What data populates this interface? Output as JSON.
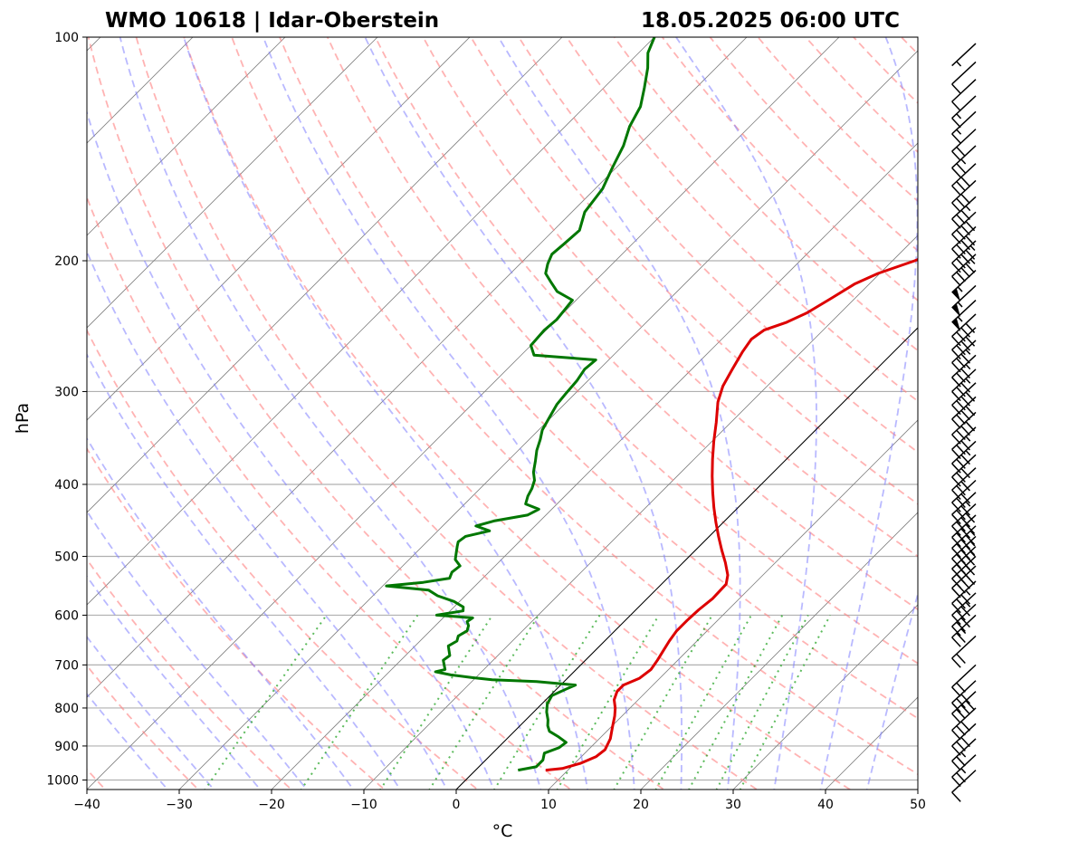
{
  "chart_data": {
    "type": "line",
    "title_left": "WMO 10618 | Idar-Oberstein",
    "title_right": "18.05.2025 06:00 UTC",
    "xlabel": "°C",
    "ylabel": "hPa",
    "xlim": [
      -40,
      50
    ],
    "ylim": [
      1030,
      100
    ],
    "y_scale": "log",
    "skew": "skew-T (isotherms slanted 45°)",
    "grid": true,
    "x_ticks": [
      -40,
      -30,
      -20,
      -10,
      0,
      10,
      20,
      30,
      40,
      50
    ],
    "x_tick_labels": [
      "−40",
      "−30",
      "−20",
      "−10",
      "0",
      "10",
      "20",
      "30",
      "40",
      "50"
    ],
    "y_ticks": [
      100,
      200,
      300,
      400,
      500,
      600,
      700,
      800,
      900,
      1000
    ],
    "y_tick_labels": [
      "100",
      "200",
      "300",
      "400",
      "500",
      "600",
      "700",
      "800",
      "900",
      "1000"
    ],
    "reference_lines": {
      "dry_adiabats": {
        "color": "#ff8080",
        "style": "dashed"
      },
      "moist_adiabats": {
        "color": "#8080ff",
        "style": "dashed"
      },
      "mixing_ratio_lines": {
        "color": "#33aa33",
        "style": "dotted",
        "top_pressure": 600
      },
      "isotherms": {
        "color": "#808080",
        "style": "solid"
      },
      "zero_isotherm_highlight": {
        "color": "#000000",
        "style": "solid"
      }
    },
    "series": [
      {
        "role": "temperature",
        "color": "#dd0000",
        "points": [
          [
            970,
            7.6
          ],
          [
            965,
            9.2
          ],
          [
            950,
            10.6
          ],
          [
            930,
            11.6
          ],
          [
            910,
            11.8
          ],
          [
            880,
            11.2
          ],
          [
            850,
            10.2
          ],
          [
            820,
            9.2
          ],
          [
            800,
            8.4
          ],
          [
            780,
            7.4
          ],
          [
            760,
            6.8
          ],
          [
            745,
            6.8
          ],
          [
            730,
            7.8
          ],
          [
            710,
            8.1
          ],
          [
            690,
            7.8
          ],
          [
            670,
            7.4
          ],
          [
            650,
            7.0
          ],
          [
            630,
            6.7
          ],
          [
            610,
            6.7
          ],
          [
            590,
            6.8
          ],
          [
            570,
            7.1
          ],
          [
            545,
            7.0
          ],
          [
            530,
            6.2
          ],
          [
            510,
            4.6
          ],
          [
            490,
            2.8
          ],
          [
            470,
            1.0
          ],
          [
            450,
            -0.8
          ],
          [
            430,
            -2.6
          ],
          [
            410,
            -4.4
          ],
          [
            390,
            -6.2
          ],
          [
            370,
            -8.0
          ],
          [
            350,
            -9.8
          ],
          [
            330,
            -11.6
          ],
          [
            310,
            -13.6
          ],
          [
            295,
            -14.8
          ],
          [
            280,
            -15.6
          ],
          [
            265,
            -16.4
          ],
          [
            255,
            -16.8
          ],
          [
            248,
            -16.4
          ],
          [
            242,
            -14.8
          ],
          [
            235,
            -13.6
          ],
          [
            225,
            -12.6
          ],
          [
            215,
            -11.6
          ],
          [
            208,
            -10.2
          ],
          [
            200,
            -7.6
          ],
          [
            192,
            -5.4
          ],
          [
            188,
            -4.8
          ],
          [
            182,
            -4.6
          ],
          [
            178,
            -3.2
          ],
          [
            170,
            -2.2
          ],
          [
            165,
            -1.0
          ],
          [
            160,
            0.0
          ],
          [
            155,
            0.4
          ],
          [
            150,
            0.6
          ],
          [
            145,
            1.2
          ],
          [
            140,
            3.6
          ],
          [
            135,
            4.8
          ],
          [
            128,
            5.2
          ],
          [
            120,
            6.0
          ],
          [
            115,
            6.4
          ],
          [
            110,
            6.2
          ],
          [
            105,
            5.8
          ],
          [
            101,
            5.8
          ]
        ]
      },
      {
        "role": "dewpoint",
        "color": "#007700",
        "points": [
          [
            970,
            4.6
          ],
          [
            960,
            6.2
          ],
          [
            940,
            6.2
          ],
          [
            920,
            5.6
          ],
          [
            905,
            6.6
          ],
          [
            890,
            6.8
          ],
          [
            875,
            5.4
          ],
          [
            860,
            3.8
          ],
          [
            845,
            3.0
          ],
          [
            830,
            2.4
          ],
          [
            810,
            1.4
          ],
          [
            790,
            0.6
          ],
          [
            770,
            0.2
          ],
          [
            755,
            1.0
          ],
          [
            745,
            1.6
          ],
          [
            737,
            -3.0
          ],
          [
            733,
            -8.0
          ],
          [
            728,
            -10.4
          ],
          [
            722,
            -13.0
          ],
          [
            715,
            -15.0
          ],
          [
            710,
            -14.2
          ],
          [
            700,
            -14.8
          ],
          [
            690,
            -15.4
          ],
          [
            680,
            -15.2
          ],
          [
            670,
            -15.8
          ],
          [
            660,
            -16.4
          ],
          [
            650,
            -16.0
          ],
          [
            640,
            -16.4
          ],
          [
            630,
            -16.0
          ],
          [
            620,
            -16.4
          ],
          [
            612,
            -17.0
          ],
          [
            605,
            -16.8
          ],
          [
            600,
            -21.0
          ],
          [
            592,
            -18.6
          ],
          [
            585,
            -19.0
          ],
          [
            575,
            -20.6
          ],
          [
            565,
            -23.0
          ],
          [
            555,
            -24.6
          ],
          [
            548,
            -29.6
          ],
          [
            542,
            -26.0
          ],
          [
            535,
            -23.6
          ],
          [
            525,
            -24.0
          ],
          [
            515,
            -23.8
          ],
          [
            505,
            -25.0
          ],
          [
            495,
            -25.6
          ],
          [
            485,
            -26.2
          ],
          [
            478,
            -26.6
          ],
          [
            470,
            -26.4
          ],
          [
            462,
            -24.4
          ],
          [
            455,
            -26.4
          ],
          [
            448,
            -25.0
          ],
          [
            440,
            -22.0
          ],
          [
            432,
            -21.4
          ],
          [
            425,
            -23.4
          ],
          [
            415,
            -24.0
          ],
          [
            405,
            -24.4
          ],
          [
            395,
            -25.0
          ],
          [
            385,
            -26.0
          ],
          [
            372,
            -27.0
          ],
          [
            360,
            -28.0
          ],
          [
            348,
            -28.8
          ],
          [
            338,
            -29.6
          ],
          [
            325,
            -30.2
          ],
          [
            312,
            -30.8
          ],
          [
            302,
            -31.0
          ],
          [
            290,
            -31.2
          ],
          [
            280,
            -31.6
          ],
          [
            272,
            -31.4
          ],
          [
            268,
            -38.6
          ],
          [
            260,
            -40.0
          ],
          [
            248,
            -40.2
          ],
          [
            240,
            -40.0
          ],
          [
            233,
            -40.2
          ],
          [
            226,
            -40.4
          ],
          [
            220,
            -43.0
          ],
          [
            214,
            -44.6
          ],
          [
            208,
            -46.2
          ],
          [
            202,
            -47.0
          ],
          [
            196,
            -47.6
          ],
          [
            190,
            -47.4
          ],
          [
            182,
            -47.2
          ],
          [
            172,
            -48.6
          ],
          [
            160,
            -49.2
          ],
          [
            150,
            -50.4
          ],
          [
            140,
            -51.6
          ],
          [
            132,
            -53.0
          ],
          [
            124,
            -54.0
          ],
          [
            117,
            -55.6
          ],
          [
            110,
            -57.4
          ],
          [
            105,
            -59.0
          ],
          [
            100,
            -60.0
          ]
        ]
      }
    ],
    "wind_barbs": {
      "color": "#000000",
      "units": "kt",
      "levels": [
        {
          "p": 970,
          "speed": 10
        },
        {
          "p": 925,
          "speed": 25
        },
        {
          "p": 880,
          "speed": 25
        },
        {
          "p": 840,
          "speed": 30
        },
        {
          "p": 800,
          "speed": 30
        },
        {
          "p": 760,
          "speed": 40
        },
        {
          "p": 735,
          "speed": 30
        },
        {
          "p": 700,
          "speed": 20
        },
        {
          "p": 640,
          "speed": 20
        },
        {
          "p": 600,
          "speed": 25
        },
        {
          "p": 580,
          "speed": 30
        },
        {
          "p": 560,
          "speed": 35
        },
        {
          "p": 540,
          "speed": 35
        },
        {
          "p": 515,
          "speed": 40
        },
        {
          "p": 500,
          "speed": 40
        },
        {
          "p": 485,
          "speed": 45
        },
        {
          "p": 470,
          "speed": 45
        },
        {
          "p": 455,
          "speed": 45
        },
        {
          "p": 440,
          "speed": 40
        },
        {
          "p": 425,
          "speed": 40
        },
        {
          "p": 410,
          "speed": 35
        },
        {
          "p": 395,
          "speed": 30
        },
        {
          "p": 380,
          "speed": 30
        },
        {
          "p": 365,
          "speed": 30
        },
        {
          "p": 350,
          "speed": 35
        },
        {
          "p": 335,
          "speed": 35
        },
        {
          "p": 320,
          "speed": 40
        },
        {
          "p": 305,
          "speed": 40
        },
        {
          "p": 292,
          "speed": 40
        },
        {
          "p": 280,
          "speed": 35
        },
        {
          "p": 268,
          "speed": 35
        },
        {
          "p": 256,
          "speed": 35
        },
        {
          "p": 246,
          "speed": 40
        },
        {
          "p": 236,
          "speed": 40
        },
        {
          "p": 226,
          "speed": 55
        },
        {
          "p": 216,
          "speed": 55
        },
        {
          "p": 206,
          "speed": 55
        },
        {
          "p": 196,
          "speed": 45
        },
        {
          "p": 188,
          "speed": 45
        },
        {
          "p": 180,
          "speed": 40
        },
        {
          "p": 172,
          "speed": 40
        },
        {
          "p": 164,
          "speed": 35
        },
        {
          "p": 156,
          "speed": 30
        },
        {
          "p": 148,
          "speed": 30
        },
        {
          "p": 140,
          "speed": 25
        },
        {
          "p": 133,
          "speed": 20
        },
        {
          "p": 126,
          "speed": 15
        },
        {
          "p": 120,
          "speed": 15
        },
        {
          "p": 114,
          "speed": 10
        },
        {
          "p": 108,
          "speed": 10
        },
        {
          "p": 102,
          "speed": 5
        }
      ]
    }
  }
}
